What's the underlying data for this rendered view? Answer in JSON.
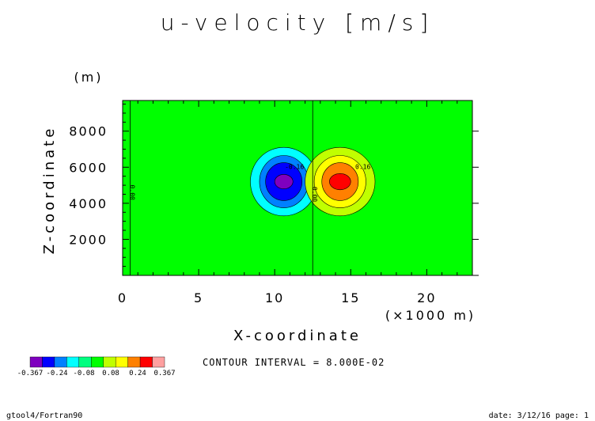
{
  "chart_data": {
    "type": "heatmap",
    "title": "u-velocity [m/s]",
    "xlabel": "X-coordinate",
    "ylabel": "Z-coordinate",
    "x_unit": "(×1000 m)",
    "y_unit": "(m)",
    "xlim": [
      0,
      23
    ],
    "ylim": [
      0,
      9700
    ],
    "x_ticks": [
      0,
      5,
      10,
      15,
      20
    ],
    "y_ticks": [
      2000,
      4000,
      6000,
      8000
    ],
    "x_tick_labels": [
      "0",
      "5",
      "10",
      "15",
      "20"
    ],
    "y_tick_labels": [
      "2000",
      "4000",
      "6000",
      "8000"
    ],
    "contour_interval_label": "CONTOUR INTERVAL = 8.000E-02",
    "colorbar": {
      "labels": [
        "-0.367",
        "-0.24",
        "-0.08",
        "0.08",
        "0.24",
        "0.367"
      ],
      "levels": [
        -0.367,
        -0.32,
        -0.24,
        -0.16,
        -0.08,
        0,
        0.08,
        0.16,
        0.24,
        0.32,
        0.367
      ],
      "colors": [
        "#7f00bf",
        "#0000ff",
        "#0080ff",
        "#00ffff",
        "#00ff80",
        "#00ff00",
        "#c0ff00",
        "#ffff00",
        "#ff8000",
        "#ff0000",
        "#ffa0a0"
      ]
    },
    "background_value": 0.0,
    "vortices": [
      {
        "sign": "negative",
        "center_x": 10.6,
        "center_z": 5200,
        "peak": -0.367
      },
      {
        "sign": "positive",
        "center_x": 14.3,
        "center_z": 5200,
        "peak": 0.367
      }
    ],
    "vertical_zero_lines_x": [
      0.5,
      12.5
    ],
    "contour_labels": [
      {
        "text": "0.00",
        "x": 0.5,
        "z": 4600,
        "rotated": true
      },
      {
        "text": "0.00",
        "x": 12.5,
        "z": 4500,
        "rotated": true
      },
      {
        "text": "-0.16",
        "x": 11.3,
        "z": 5900
      },
      {
        "text": "0.16",
        "x": 15.8,
        "z": 5900
      }
    ],
    "grid": false,
    "legend": "bottom-left colorbar"
  },
  "footer": {
    "left": "gtool4/Fortran90",
    "right": "date: 3/12/16 page: 1"
  }
}
